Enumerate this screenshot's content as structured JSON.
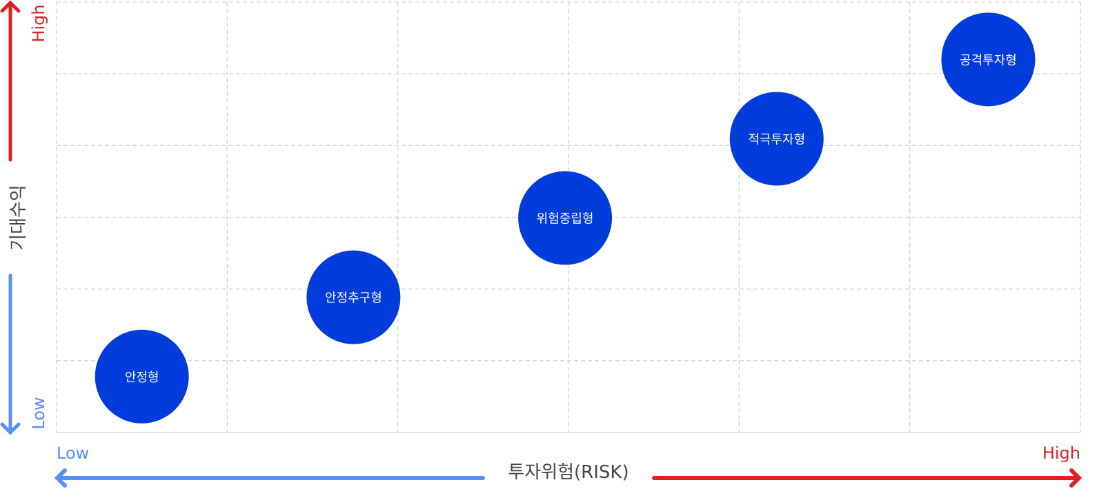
{
  "y_axis": {
    "title": "기대수익",
    "high_label": "High",
    "low_label": "Low"
  },
  "x_axis": {
    "title": "투자위험(RISK)",
    "low_label": "Low",
    "high_label": "High"
  },
  "colors": {
    "high": "#e02020",
    "low": "#5590f8",
    "bubble": "#003bdc",
    "grid": "#d0d0d0"
  },
  "profiles": [
    {
      "label": "안정형"
    },
    {
      "label": "안정추구형"
    },
    {
      "label": "위험중립형"
    },
    {
      "label": "적극투자형"
    },
    {
      "label": "공격투자형"
    }
  ]
}
